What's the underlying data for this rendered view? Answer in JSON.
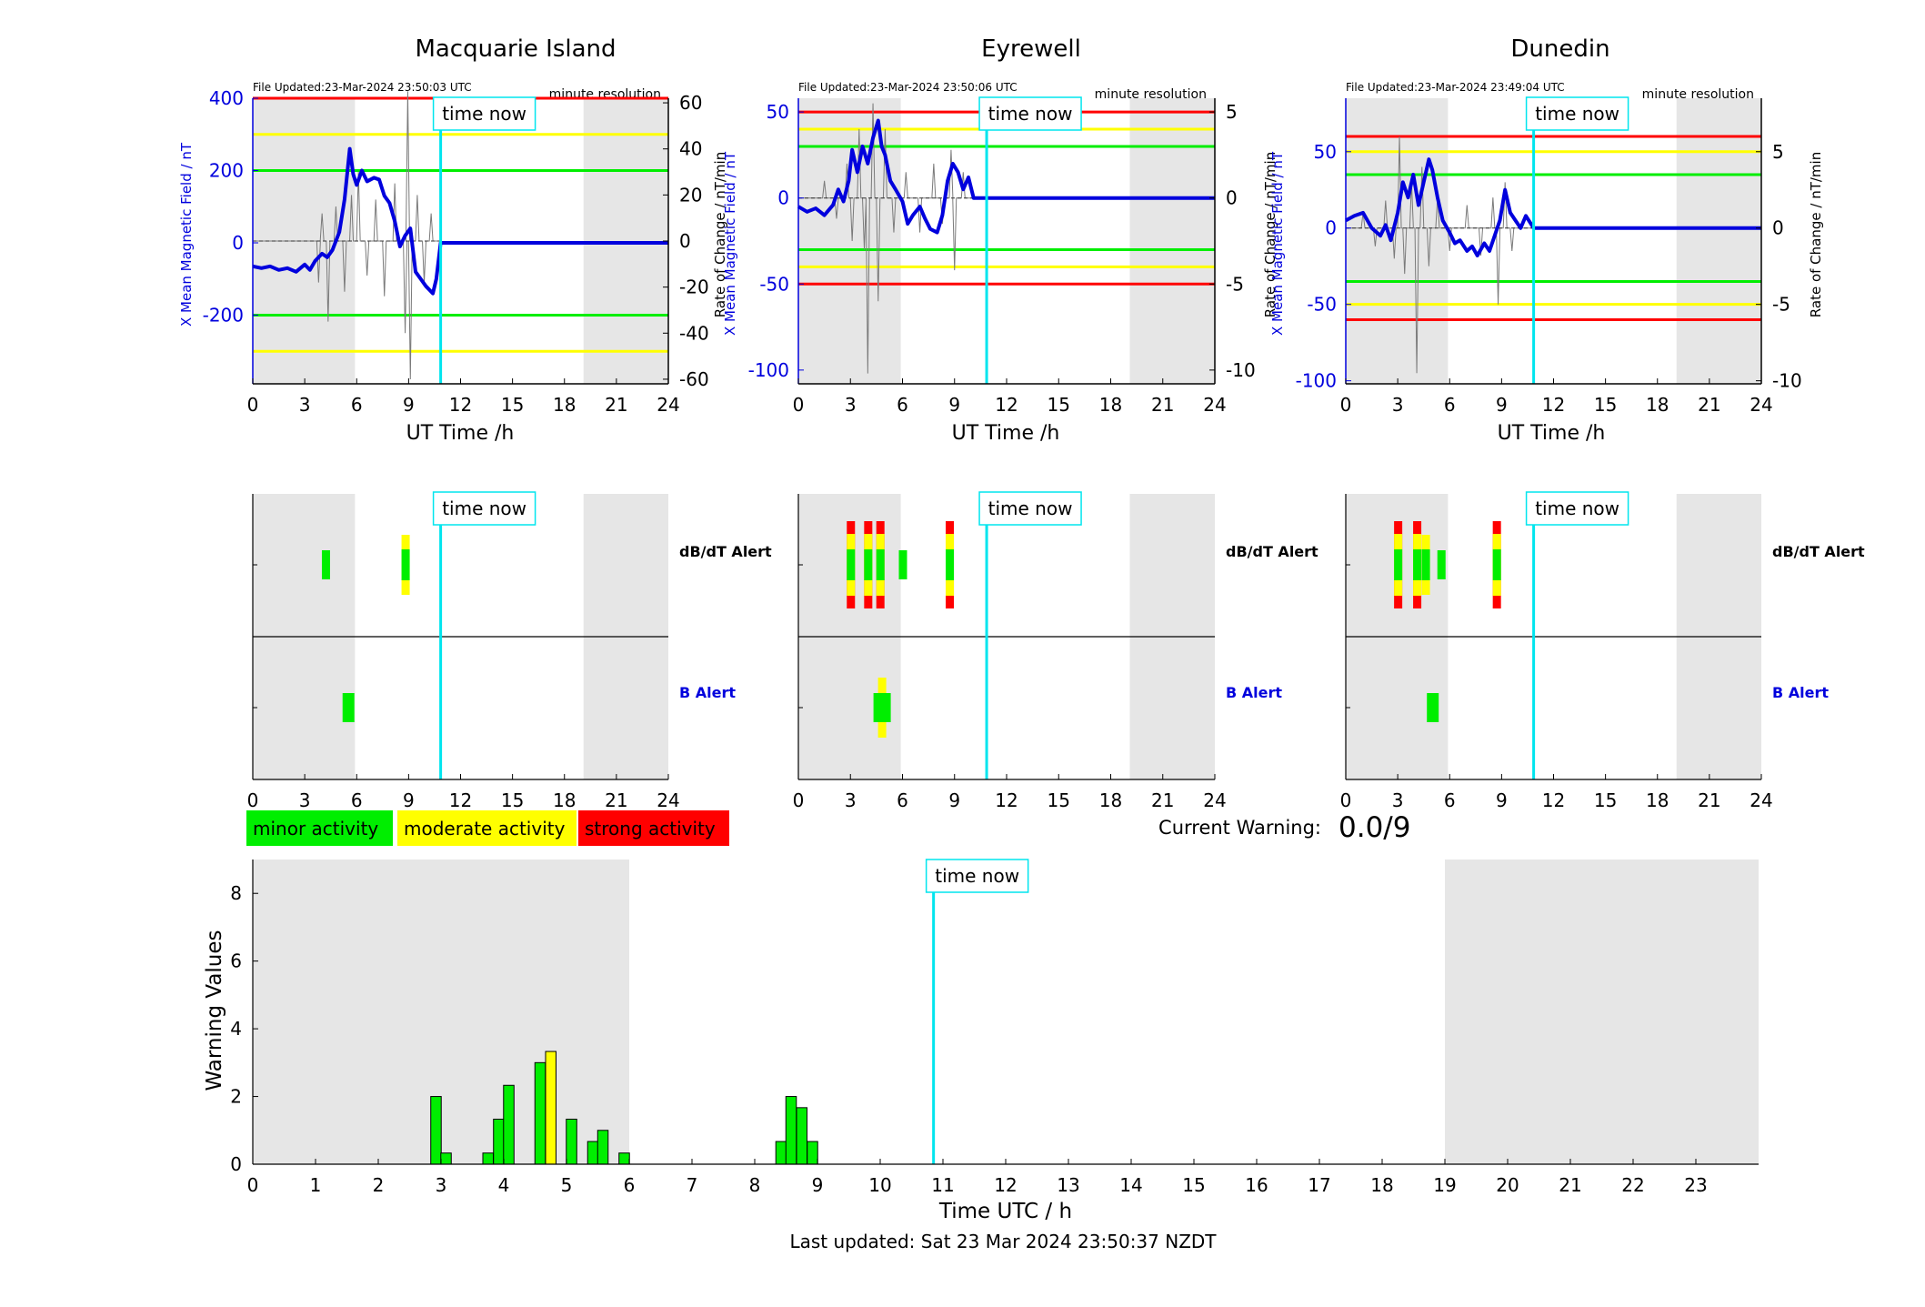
{
  "page": {
    "current_warning_label": "Current Warning:",
    "current_warning_value": "0.0/9",
    "last_updated": "Last updated: Sat 23 Mar 2024 23:50:37 NZDT",
    "time_now_label": "time now",
    "time_now_hour": 10.85
  },
  "colors": {
    "field": "#0000dd",
    "roc": "#7a7a7a",
    "time_now": "#00e5ee",
    "red": "#ff0000",
    "yellow": "#ffff00",
    "green": "#00ee00",
    "shade": "#e6e6e6"
  },
  "legend": [
    {
      "label": "minor activity",
      "color": "#00ee00"
    },
    {
      "label": "moderate activity",
      "color": "#ffff00"
    },
    {
      "label": "strong activity",
      "color": "#ff0000"
    }
  ],
  "chart_data": [
    {
      "type": "line",
      "title": "Macquarie Island",
      "file_updated": "File Updated:23-Mar-2024 23:50:03 UTC",
      "resolution": "minute resolution",
      "xlabel": "UT Time /h",
      "ylabel_left": "X Mean Magnetic Field / nT",
      "ylabel_right": "Rate of Change / nT/min",
      "xlim": [
        0,
        24
      ],
      "xticks": [
        0,
        3,
        6,
        9,
        12,
        15,
        18,
        21,
        24
      ],
      "ylim_left": [
        -390,
        400
      ],
      "yticks_left": [
        -200,
        0,
        200,
        400
      ],
      "ylim_right": [
        -62,
        62
      ],
      "yticks_right": [
        -60,
        -40,
        -20,
        0,
        20,
        40,
        60
      ],
      "shaded_hours": [
        [
          0,
          5.9
        ],
        [
          19.1,
          24
        ]
      ],
      "thresholds": [
        {
          "value": 400,
          "level": "red"
        },
        {
          "value": 300,
          "level": "yellow"
        },
        {
          "value": 200,
          "level": "green"
        },
        {
          "value": -200,
          "level": "green"
        },
        {
          "value": -300,
          "level": "yellow"
        }
      ],
      "field_series": {
        "x": [
          0,
          0.5,
          1,
          1.5,
          2,
          2.5,
          3,
          3.3,
          3.6,
          4,
          4.3,
          4.6,
          5,
          5.3,
          5.6,
          5.8,
          6,
          6.3,
          6.6,
          7,
          7.3,
          7.6,
          7.9,
          8.2,
          8.5,
          8.8,
          9.1,
          9.4,
          9.7,
          10,
          10.2,
          10.4,
          10.6,
          10.85,
          12,
          16,
          20,
          24
        ],
        "y": [
          -65,
          -70,
          -65,
          -75,
          -70,
          -80,
          -60,
          -75,
          -50,
          -30,
          -40,
          -20,
          30,
          120,
          260,
          190,
          160,
          200,
          170,
          180,
          175,
          130,
          110,
          60,
          -10,
          20,
          40,
          -80,
          -100,
          -120,
          -130,
          -140,
          -100,
          0,
          0,
          0,
          0,
          0
        ]
      },
      "roc_spikes": [
        [
          3.8,
          -18
        ],
        [
          4.0,
          12
        ],
        [
          4.35,
          -35
        ],
        [
          4.8,
          15
        ],
        [
          5.3,
          -22
        ],
        [
          5.7,
          20
        ],
        [
          6.1,
          30
        ],
        [
          6.6,
          -15
        ],
        [
          7.1,
          18
        ],
        [
          7.6,
          -24
        ],
        [
          8.2,
          25
        ],
        [
          8.8,
          -40
        ],
        [
          8.95,
          65
        ],
        [
          9.1,
          -60
        ],
        [
          9.5,
          20
        ],
        [
          9.9,
          -18
        ],
        [
          10.3,
          12
        ]
      ],
      "alerts": {
        "dbdt": [
          {
            "hour": 4.2,
            "level": "green"
          },
          {
            "hour": 8.8,
            "level": "yellow"
          }
        ],
        "b": [
          {
            "hour": 5.5,
            "level": "green"
          }
        ]
      }
    },
    {
      "type": "line",
      "title": "Eyrewell",
      "file_updated": "File Updated:23-Mar-2024 23:50:06 UTC",
      "resolution": "minute resolution",
      "xlabel": "UT Time /h",
      "ylabel_left": "X Mean Magnetic Field / nT",
      "ylabel_right": "Rate of Change / nT/min",
      "xlim": [
        0,
        24
      ],
      "xticks": [
        0,
        3,
        6,
        9,
        12,
        15,
        18,
        21,
        24
      ],
      "ylim_left": [
        -108,
        58
      ],
      "yticks_left": [
        -100,
        -50,
        0,
        50
      ],
      "ylim_right": [
        -10.8,
        5.8
      ],
      "yticks_right": [
        -10,
        -5,
        0,
        5
      ],
      "shaded_hours": [
        [
          0,
          5.9
        ],
        [
          19.1,
          24
        ]
      ],
      "thresholds": [
        {
          "value": 50,
          "level": "red"
        },
        {
          "value": 40,
          "level": "yellow"
        },
        {
          "value": 30,
          "level": "green"
        },
        {
          "value": -30,
          "level": "green"
        },
        {
          "value": -40,
          "level": "yellow"
        },
        {
          "value": -50,
          "level": "red"
        }
      ],
      "field_series": {
        "x": [
          0,
          0.5,
          1,
          1.5,
          2,
          2.3,
          2.6,
          2.9,
          3.1,
          3.4,
          3.7,
          4.0,
          4.3,
          4.6,
          4.8,
          5.0,
          5.3,
          5.6,
          6.0,
          6.3,
          6.6,
          7.0,
          7.3,
          7.6,
          8.0,
          8.3,
          8.6,
          8.9,
          9.2,
          9.5,
          9.8,
          10.1,
          10.85,
          14,
          19,
          24
        ],
        "y": [
          -5,
          -8,
          -6,
          -10,
          -4,
          5,
          -2,
          10,
          28,
          15,
          30,
          20,
          35,
          45,
          30,
          25,
          10,
          5,
          -2,
          -15,
          -10,
          -5,
          -12,
          -18,
          -20,
          -10,
          10,
          20,
          15,
          5,
          12,
          0,
          0,
          0,
          0,
          0
        ]
      },
      "roc_spikes": [
        [
          1.5,
          1.0
        ],
        [
          2.2,
          -1.2
        ],
        [
          2.8,
          2.0
        ],
        [
          3.1,
          -2.5
        ],
        [
          3.5,
          4.0
        ],
        [
          3.8,
          -3.0
        ],
        [
          4.0,
          -10.2
        ],
        [
          4.3,
          5.5
        ],
        [
          4.6,
          -6.0
        ],
        [
          5.0,
          4.0
        ],
        [
          5.5,
          -2.0
        ],
        [
          6.2,
          1.5
        ],
        [
          7.0,
          -2.0
        ],
        [
          7.8,
          2.0
        ],
        [
          8.3,
          -1.5
        ],
        [
          8.8,
          2.8
        ],
        [
          9.0,
          -4.2
        ],
        [
          9.5,
          1.5
        ]
      ],
      "alerts": {
        "dbdt": [
          {
            "hour": 3.0,
            "level": "red"
          },
          {
            "hour": 4.0,
            "level": "red"
          },
          {
            "hour": 4.7,
            "level": "red"
          },
          {
            "hour": 6.0,
            "level": "green"
          },
          {
            "hour": 8.7,
            "level": "red"
          }
        ],
        "b": [
          {
            "hour": 4.8,
            "level": "yellow"
          }
        ]
      }
    },
    {
      "type": "line",
      "title": "Dunedin",
      "file_updated": "File Updated:23-Mar-2024 23:49:04 UTC",
      "resolution": "minute resolution",
      "xlabel": "UT Time /h",
      "ylabel_left": "X Mean Magnetic Field / nT",
      "ylabel_right": "Rate of Change / nT/min",
      "xlim": [
        0,
        24
      ],
      "xticks": [
        0,
        3,
        6,
        9,
        12,
        15,
        18,
        21,
        24
      ],
      "ylim_left": [
        -102,
        85
      ],
      "yticks_left": [
        -100,
        -50,
        0,
        50
      ],
      "ylim_right": [
        -10.2,
        8.5
      ],
      "yticks_right": [
        -10,
        -5,
        0,
        5
      ],
      "shaded_hours": [
        [
          0,
          5.9
        ],
        [
          19.1,
          24
        ]
      ],
      "thresholds": [
        {
          "value": 60,
          "level": "red"
        },
        {
          "value": 50,
          "level": "yellow"
        },
        {
          "value": 35,
          "level": "green"
        },
        {
          "value": -35,
          "level": "green"
        },
        {
          "value": -50,
          "level": "yellow"
        },
        {
          "value": -60,
          "level": "red"
        }
      ],
      "field_series": {
        "x": [
          0,
          0.5,
          1,
          1.5,
          2,
          2.3,
          2.6,
          3.0,
          3.3,
          3.6,
          3.9,
          4.2,
          4.5,
          4.8,
          5.0,
          5.3,
          5.6,
          6.0,
          6.3,
          6.6,
          7.0,
          7.3,
          7.6,
          8.0,
          8.3,
          8.6,
          8.9,
          9.2,
          9.5,
          9.8,
          10.1,
          10.4,
          10.85,
          15,
          20,
          24
        ],
        "y": [
          5,
          8,
          10,
          0,
          -5,
          2,
          -8,
          10,
          30,
          20,
          35,
          15,
          30,
          45,
          38,
          20,
          5,
          -3,
          -10,
          -8,
          -15,
          -12,
          -18,
          -10,
          -15,
          -5,
          5,
          25,
          10,
          5,
          0,
          8,
          0,
          0,
          0,
          0
        ]
      },
      "roc_spikes": [
        [
          1.0,
          1.0
        ],
        [
          1.7,
          -1.2
        ],
        [
          2.3,
          1.8
        ],
        [
          2.8,
          -2.0
        ],
        [
          3.1,
          6.0
        ],
        [
          3.4,
          -3.0
        ],
        [
          3.8,
          3.0
        ],
        [
          4.1,
          -9.5
        ],
        [
          4.4,
          4.0
        ],
        [
          4.8,
          -2.5
        ],
        [
          5.3,
          2.0
        ],
        [
          6.0,
          -1.5
        ],
        [
          7.0,
          1.5
        ],
        [
          7.8,
          -1.8
        ],
        [
          8.5,
          2.0
        ],
        [
          8.8,
          -5.0
        ],
        [
          9.2,
          3.0
        ],
        [
          9.6,
          -1.5
        ]
      ],
      "alerts": {
        "dbdt": [
          {
            "hour": 3.0,
            "level": "red"
          },
          {
            "hour": 4.1,
            "level": "red"
          },
          {
            "hour": 4.6,
            "level": "yellow"
          },
          {
            "hour": 5.5,
            "level": "green"
          },
          {
            "hour": 8.7,
            "level": "red"
          }
        ],
        "b": [
          {
            "hour": 5.0,
            "level": "green"
          }
        ]
      }
    },
    {
      "type": "bar",
      "xlabel": "Time UTC / h",
      "ylabel": "Warning Values",
      "xlim": [
        0,
        24
      ],
      "xticks": [
        0,
        1,
        2,
        3,
        4,
        5,
        6,
        7,
        8,
        9,
        10,
        11,
        12,
        13,
        14,
        15,
        16,
        17,
        18,
        19,
        20,
        21,
        22,
        23
      ],
      "ylim": [
        0,
        9
      ],
      "yticks": [
        0,
        2,
        4,
        6,
        8
      ],
      "shaded_hours": [
        [
          0,
          6
        ],
        [
          19,
          24
        ]
      ],
      "bin_width_hours": 0.1667,
      "bars": [
        {
          "x": 2.92,
          "value": 2.0,
          "level": "green"
        },
        {
          "x": 3.08,
          "value": 0.33,
          "level": "green"
        },
        {
          "x": 3.75,
          "value": 0.33,
          "level": "green"
        },
        {
          "x": 3.92,
          "value": 1.33,
          "level": "green"
        },
        {
          "x": 4.08,
          "value": 2.33,
          "level": "green"
        },
        {
          "x": 4.58,
          "value": 3.0,
          "level": "green"
        },
        {
          "x": 4.75,
          "value": 3.33,
          "level": "yellow"
        },
        {
          "x": 5.08,
          "value": 1.33,
          "level": "green"
        },
        {
          "x": 5.42,
          "value": 0.67,
          "level": "green"
        },
        {
          "x": 5.58,
          "value": 1.0,
          "level": "green"
        },
        {
          "x": 5.92,
          "value": 0.33,
          "level": "green"
        },
        {
          "x": 8.42,
          "value": 0.67,
          "level": "green"
        },
        {
          "x": 8.58,
          "value": 2.0,
          "level": "green"
        },
        {
          "x": 8.75,
          "value": 1.67,
          "level": "green"
        },
        {
          "x": 8.92,
          "value": 0.67,
          "level": "green"
        }
      ]
    }
  ]
}
